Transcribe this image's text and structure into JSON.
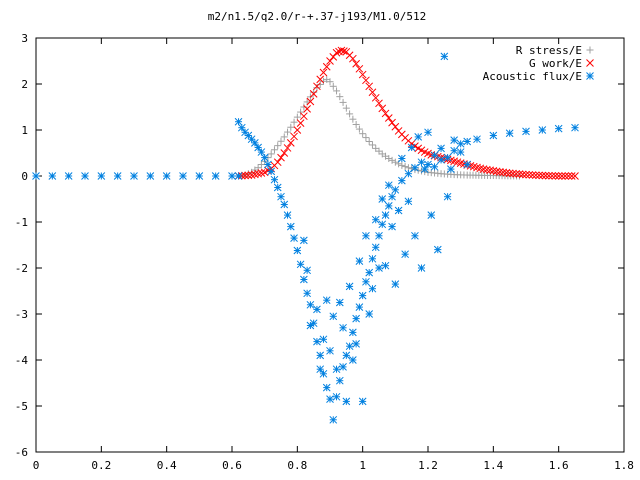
{
  "chart_data": {
    "type": "scatter",
    "title": "m2/n1.5/q2.0/r-+.37-j193/M1.0/512",
    "xlabel": "",
    "ylabel": "",
    "xlim": [
      0,
      1.8
    ],
    "ylim": [
      -6,
      3
    ],
    "x_ticks": [
      "0",
      "0.2",
      "0.4",
      "0.6",
      "0.8",
      "1",
      "1.2",
      "1.4",
      "1.6",
      "1.8"
    ],
    "y_ticks": [
      "3",
      "2",
      "1",
      "0",
      "-1",
      "-2",
      "-3",
      "-4",
      "-5",
      "-6"
    ],
    "grid": false,
    "legend_position": "top-right",
    "series": [
      {
        "name": "R stress/E",
        "marker": "plus",
        "color": "#a0a0a0",
        "points": [
          [
            0.62,
            0.0
          ],
          [
            0.64,
            0.02
          ],
          [
            0.66,
            0.08
          ],
          [
            0.68,
            0.18
          ],
          [
            0.7,
            0.32
          ],
          [
            0.72,
            0.48
          ],
          [
            0.74,
            0.66
          ],
          [
            0.76,
            0.85
          ],
          [
            0.78,
            1.06
          ],
          [
            0.8,
            1.28
          ],
          [
            0.82,
            1.5
          ],
          [
            0.84,
            1.72
          ],
          [
            0.86,
            1.92
          ],
          [
            0.88,
            2.06
          ],
          [
            0.89,
            2.1
          ],
          [
            0.9,
            2.05
          ],
          [
            0.92,
            1.85
          ],
          [
            0.94,
            1.6
          ],
          [
            0.96,
            1.35
          ],
          [
            0.98,
            1.12
          ],
          [
            1.0,
            0.92
          ],
          [
            1.02,
            0.75
          ],
          [
            1.04,
            0.6
          ],
          [
            1.06,
            0.48
          ],
          [
            1.08,
            0.38
          ],
          [
            1.1,
            0.3
          ],
          [
            1.12,
            0.23
          ],
          [
            1.14,
            0.18
          ],
          [
            1.16,
            0.14
          ],
          [
            1.18,
            0.11
          ],
          [
            1.2,
            0.08
          ],
          [
            1.24,
            0.05
          ],
          [
            1.28,
            0.03
          ],
          [
            1.32,
            0.02
          ],
          [
            1.4,
            0.01
          ],
          [
            1.48,
            0.0
          ]
        ]
      },
      {
        "name": "G work/E",
        "marker": "x",
        "color": "#ff0000",
        "points": [
          [
            0.62,
            0.0
          ],
          [
            0.66,
            0.02
          ],
          [
            0.7,
            0.08
          ],
          [
            0.72,
            0.16
          ],
          [
            0.74,
            0.3
          ],
          [
            0.76,
            0.5
          ],
          [
            0.78,
            0.72
          ],
          [
            0.8,
            1.0
          ],
          [
            0.82,
            1.3
          ],
          [
            0.84,
            1.62
          ],
          [
            0.86,
            1.95
          ],
          [
            0.88,
            2.25
          ],
          [
            0.9,
            2.5
          ],
          [
            0.92,
            2.68
          ],
          [
            0.935,
            2.73
          ],
          [
            0.95,
            2.7
          ],
          [
            0.97,
            2.55
          ],
          [
            0.99,
            2.33
          ],
          [
            1.01,
            2.08
          ],
          [
            1.03,
            1.82
          ],
          [
            1.05,
            1.58
          ],
          [
            1.07,
            1.36
          ],
          [
            1.09,
            1.16
          ],
          [
            1.11,
            0.98
          ],
          [
            1.13,
            0.83
          ],
          [
            1.15,
            0.7
          ],
          [
            1.17,
            0.6
          ],
          [
            1.19,
            0.52
          ],
          [
            1.21,
            0.46
          ],
          [
            1.25,
            0.38
          ],
          [
            1.29,
            0.3
          ],
          [
            1.33,
            0.22
          ],
          [
            1.37,
            0.15
          ],
          [
            1.41,
            0.1
          ],
          [
            1.45,
            0.06
          ],
          [
            1.5,
            0.03
          ],
          [
            1.55,
            0.01
          ],
          [
            1.6,
            0.0
          ],
          [
            1.65,
            0.0
          ]
        ]
      },
      {
        "name": "Acoustic flux/E",
        "marker": "star",
        "color": "#0080e0",
        "points": [
          [
            0.0,
            0.0
          ],
          [
            0.05,
            0.0
          ],
          [
            0.1,
            0.0
          ],
          [
            0.15,
            0.0
          ],
          [
            0.2,
            0.0
          ],
          [
            0.25,
            0.0
          ],
          [
            0.3,
            0.0
          ],
          [
            0.35,
            0.0
          ],
          [
            0.4,
            0.0
          ],
          [
            0.45,
            0.0
          ],
          [
            0.5,
            0.0
          ],
          [
            0.55,
            0.0
          ],
          [
            0.6,
            0.0
          ],
          [
            0.62,
            0.0
          ],
          [
            0.62,
            1.18
          ],
          [
            0.63,
            1.05
          ],
          [
            0.64,
            0.95
          ],
          [
            0.65,
            0.88
          ],
          [
            0.66,
            0.8
          ],
          [
            0.67,
            0.72
          ],
          [
            0.68,
            0.62
          ],
          [
            0.69,
            0.52
          ],
          [
            0.7,
            0.4
          ],
          [
            0.71,
            0.25
          ],
          [
            0.72,
            0.1
          ],
          [
            0.73,
            -0.08
          ],
          [
            0.74,
            -0.25
          ],
          [
            0.75,
            -0.45
          ],
          [
            0.76,
            -0.62
          ],
          [
            0.77,
            -0.85
          ],
          [
            0.78,
            -1.1
          ],
          [
            0.79,
            -1.35
          ],
          [
            0.8,
            -1.62
          ],
          [
            0.81,
            -1.92
          ],
          [
            0.82,
            -2.25
          ],
          [
            0.83,
            -2.55
          ],
          [
            0.84,
            -2.8
          ],
          [
            0.85,
            -3.2
          ],
          [
            0.86,
            -3.6
          ],
          [
            0.87,
            -3.9
          ],
          [
            0.88,
            -4.3
          ],
          [
            0.89,
            -4.6
          ],
          [
            0.9,
            -4.85
          ],
          [
            0.91,
            -5.3
          ],
          [
            0.92,
            -4.8
          ],
          [
            0.93,
            -4.45
          ],
          [
            0.94,
            -4.15
          ],
          [
            0.95,
            -3.9
          ],
          [
            0.96,
            -3.7
          ],
          [
            0.97,
            -3.4
          ],
          [
            0.98,
            -3.1
          ],
          [
            0.99,
            -2.85
          ],
          [
            1.0,
            -2.6
          ],
          [
            1.01,
            -2.3
          ],
          [
            1.02,
            -2.1
          ],
          [
            1.03,
            -1.8
          ],
          [
            1.04,
            -1.55
          ],
          [
            1.05,
            -1.3
          ],
          [
            1.06,
            -1.05
          ],
          [
            1.07,
            -0.85
          ],
          [
            1.08,
            -0.65
          ],
          [
            1.09,
            -0.45
          ],
          [
            1.1,
            -0.3
          ],
          [
            1.12,
            -0.1
          ],
          [
            1.14,
            0.05
          ],
          [
            1.16,
            0.18
          ],
          [
            1.18,
            0.3
          ],
          [
            1.2,
            0.25
          ],
          [
            1.22,
            0.45
          ],
          [
            1.24,
            0.6
          ],
          [
            1.26,
            0.4
          ],
          [
            1.28,
            0.55
          ],
          [
            1.3,
            0.7
          ],
          [
            1.32,
            0.75
          ],
          [
            1.35,
            0.8
          ],
          [
            1.4,
            0.88
          ],
          [
            1.45,
            0.93
          ],
          [
            1.5,
            0.97
          ],
          [
            1.55,
            1.0
          ],
          [
            1.6,
            1.03
          ],
          [
            1.65,
            1.05
          ],
          [
            0.82,
            -1.4
          ],
          [
            0.83,
            -2.05
          ],
          [
            0.84,
            -3.25
          ],
          [
            0.86,
            -2.9
          ],
          [
            0.87,
            -4.2
          ],
          [
            0.88,
            -3.55
          ],
          [
            0.89,
            -2.7
          ],
          [
            0.9,
            -3.8
          ],
          [
            0.91,
            -3.05
          ],
          [
            0.92,
            -4.2
          ],
          [
            0.93,
            -2.75
          ],
          [
            0.94,
            -3.3
          ],
          [
            0.95,
            -4.9
          ],
          [
            0.96,
            -2.4
          ],
          [
            0.97,
            -4.0
          ],
          [
            0.98,
            -3.65
          ],
          [
            0.99,
            -1.85
          ],
          [
            1.0,
            -4.9
          ],
          [
            1.01,
            -1.3
          ],
          [
            1.02,
            -3.0
          ],
          [
            1.03,
            -2.45
          ],
          [
            1.04,
            -0.95
          ],
          [
            1.05,
            -2.0
          ],
          [
            1.06,
            -0.5
          ],
          [
            1.07,
            -1.95
          ],
          [
            1.08,
            -0.2
          ],
          [
            1.09,
            -1.1
          ],
          [
            1.1,
            -2.35
          ],
          [
            1.11,
            -0.75
          ],
          [
            1.12,
            0.38
          ],
          [
            1.13,
            -1.7
          ],
          [
            1.14,
            -0.55
          ],
          [
            1.15,
            0.62
          ],
          [
            1.16,
            -1.3
          ],
          [
            1.17,
            0.85
          ],
          [
            1.18,
            -2.0
          ],
          [
            1.19,
            0.15
          ],
          [
            1.2,
            0.95
          ],
          [
            1.21,
            -0.85
          ],
          [
            1.22,
            0.2
          ],
          [
            1.23,
            -1.6
          ],
          [
            1.24,
            0.35
          ],
          [
            1.25,
            2.6
          ],
          [
            1.26,
            -0.45
          ],
          [
            1.27,
            0.15
          ],
          [
            1.28,
            0.78
          ],
          [
            1.3,
            0.52
          ],
          [
            1.32,
            0.25
          ]
        ]
      }
    ]
  }
}
